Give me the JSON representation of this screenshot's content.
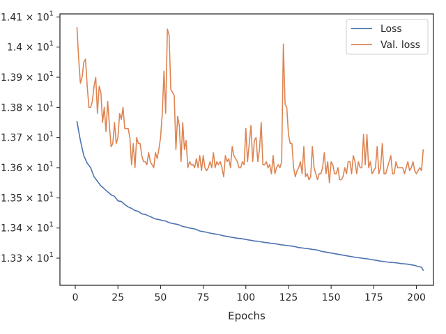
{
  "chart_data": {
    "type": "line",
    "title": "",
    "xlabel": "Epochs",
    "ylabel": "",
    "xlim": [
      -9,
      210
    ],
    "ylim": [
      13.21,
      14.11
    ],
    "x_ticks": [
      0,
      25,
      50,
      75,
      100,
      125,
      150,
      175,
      200
    ],
    "x_tick_labels": [
      "0",
      "25",
      "50",
      "75",
      "100",
      "125",
      "150",
      "175",
      "200"
    ],
    "y_ticks": [
      13.3,
      13.4,
      13.5,
      13.6,
      13.7,
      13.8,
      13.9,
      14.0,
      14.1
    ],
    "y_tick_labels": [
      {
        "mantissa": "1.33",
        "exp": "1"
      },
      {
        "mantissa": "1.34",
        "exp": "1"
      },
      {
        "mantissa": "1.35",
        "exp": "1"
      },
      {
        "mantissa": "1.36",
        "exp": "1"
      },
      {
        "mantissa": "1.37",
        "exp": "1"
      },
      {
        "mantissa": "1.38",
        "exp": "1"
      },
      {
        "mantissa": "1.39",
        "exp": "1"
      },
      {
        "mantissa": "1.4",
        "exp": "1"
      },
      {
        "mantissa": "1.41",
        "exp": "1"
      }
    ],
    "grid": false,
    "legend_position": "top-right",
    "series": [
      {
        "name": "Loss",
        "color": "#4c72b0",
        "points": [
          [
            1,
            13.753
          ],
          [
            3,
            13.69
          ],
          [
            5,
            13.64
          ],
          [
            7,
            13.615
          ],
          [
            9,
            13.6
          ],
          [
            11,
            13.57
          ],
          [
            13,
            13.555
          ],
          [
            15,
            13.54
          ],
          [
            17,
            13.53
          ],
          [
            19,
            13.52
          ],
          [
            21,
            13.51
          ],
          [
            23,
            13.505
          ],
          [
            25,
            13.49
          ],
          [
            27,
            13.488
          ],
          [
            29,
            13.478
          ],
          [
            31,
            13.47
          ],
          [
            33,
            13.465
          ],
          [
            35,
            13.458
          ],
          [
            37,
            13.455
          ],
          [
            39,
            13.447
          ],
          [
            41,
            13.445
          ],
          [
            43,
            13.44
          ],
          [
            45,
            13.435
          ],
          [
            47,
            13.43
          ],
          [
            49,
            13.428
          ],
          [
            51,
            13.425
          ],
          [
            53,
            13.423
          ],
          [
            55,
            13.418
          ],
          [
            57,
            13.415
          ],
          [
            59,
            13.413
          ],
          [
            61,
            13.41
          ],
          [
            63,
            13.405
          ],
          [
            65,
            13.403
          ],
          [
            67,
            13.4
          ],
          [
            69,
            13.398
          ],
          [
            71,
            13.395
          ],
          [
            73,
            13.39
          ],
          [
            75,
            13.388
          ],
          [
            77,
            13.386
          ],
          [
            79,
            13.383
          ],
          [
            81,
            13.381
          ],
          [
            83,
            13.379
          ],
          [
            85,
            13.377
          ],
          [
            87,
            13.374
          ],
          [
            89,
            13.372
          ],
          [
            91,
            13.37
          ],
          [
            93,
            13.368
          ],
          [
            95,
            13.366
          ],
          [
            97,
            13.365
          ],
          [
            99,
            13.363
          ],
          [
            101,
            13.361
          ],
          [
            103,
            13.359
          ],
          [
            105,
            13.357
          ],
          [
            107,
            13.356
          ],
          [
            109,
            13.354
          ],
          [
            111,
            13.352
          ],
          [
            113,
            13.351
          ],
          [
            115,
            13.349
          ],
          [
            117,
            13.348
          ],
          [
            119,
            13.346
          ],
          [
            121,
            13.344
          ],
          [
            123,
            13.343
          ],
          [
            125,
            13.341
          ],
          [
            127,
            13.34
          ],
          [
            129,
            13.338
          ],
          [
            131,
            13.335
          ],
          [
            133,
            13.334
          ],
          [
            135,
            13.332
          ],
          [
            137,
            13.331
          ],
          [
            139,
            13.329
          ],
          [
            141,
            13.328
          ],
          [
            143,
            13.325
          ],
          [
            145,
            13.322
          ],
          [
            147,
            13.32
          ],
          [
            149,
            13.318
          ],
          [
            151,
            13.316
          ],
          [
            153,
            13.314
          ],
          [
            155,
            13.312
          ],
          [
            157,
            13.31
          ],
          [
            159,
            13.308
          ],
          [
            161,
            13.306
          ],
          [
            163,
            13.304
          ],
          [
            165,
            13.302
          ],
          [
            167,
            13.301
          ],
          [
            169,
            13.299
          ],
          [
            171,
            13.298
          ],
          [
            173,
            13.296
          ],
          [
            175,
            13.294
          ],
          [
            177,
            13.292
          ],
          [
            179,
            13.29
          ],
          [
            181,
            13.289
          ],
          [
            183,
            13.287
          ],
          [
            185,
            13.286
          ],
          [
            187,
            13.285
          ],
          [
            189,
            13.284
          ],
          [
            191,
            13.282
          ],
          [
            193,
            13.281
          ],
          [
            195,
            13.28
          ],
          [
            197,
            13.278
          ],
          [
            199,
            13.276
          ],
          [
            201,
            13.272
          ],
          [
            203,
            13.27
          ],
          [
            204,
            13.26
          ]
        ]
      },
      {
        "name": "Val. loss",
        "color": "#dd8452",
        "points": [
          [
            1,
            14.065
          ],
          [
            2,
            13.96
          ],
          [
            3,
            13.88
          ],
          [
            4,
            13.9
          ],
          [
            5,
            13.95
          ],
          [
            6,
            13.96
          ],
          [
            7,
            13.87
          ],
          [
            8,
            13.8
          ],
          [
            9,
            13.8
          ],
          [
            10,
            13.82
          ],
          [
            11,
            13.87
          ],
          [
            12,
            13.9
          ],
          [
            13,
            13.78
          ],
          [
            14,
            13.87
          ],
          [
            15,
            13.85
          ],
          [
            16,
            13.75
          ],
          [
            17,
            13.8
          ],
          [
            18,
            13.72
          ],
          [
            19,
            13.82
          ],
          [
            20,
            13.74
          ],
          [
            21,
            13.67
          ],
          [
            22,
            13.68
          ],
          [
            23,
            13.75
          ],
          [
            24,
            13.68
          ],
          [
            25,
            13.7
          ],
          [
            26,
            13.78
          ],
          [
            27,
            13.76
          ],
          [
            28,
            13.8
          ],
          [
            29,
            13.73
          ],
          [
            30,
            13.73
          ],
          [
            31,
            13.73
          ],
          [
            32,
            13.7
          ],
          [
            33,
            13.61
          ],
          [
            34,
            13.68
          ],
          [
            35,
            13.6
          ],
          [
            36,
            13.7
          ],
          [
            37,
            13.68
          ],
          [
            38,
            13.68
          ],
          [
            39,
            13.64
          ],
          [
            40,
            13.62
          ],
          [
            41,
            13.62
          ],
          [
            42,
            13.61
          ],
          [
            43,
            13.65
          ],
          [
            44,
            13.62
          ],
          [
            45,
            13.61
          ],
          [
            46,
            13.6
          ],
          [
            47,
            13.65
          ],
          [
            48,
            13.63
          ],
          [
            49,
            13.66
          ],
          [
            50,
            13.7
          ],
          [
            51,
            13.78
          ],
          [
            52,
            13.92
          ],
          [
            53,
            13.78
          ],
          [
            54,
            14.06
          ],
          [
            55,
            14.04
          ],
          [
            56,
            13.86
          ],
          [
            57,
            13.85
          ],
          [
            58,
            13.84
          ],
          [
            59,
            13.66
          ],
          [
            60,
            13.77
          ],
          [
            61,
            13.74
          ],
          [
            62,
            13.62
          ],
          [
            63,
            13.75
          ],
          [
            64,
            13.66
          ],
          [
            65,
            13.69
          ],
          [
            66,
            13.6
          ],
          [
            67,
            13.62
          ],
          [
            68,
            13.61
          ],
          [
            69,
            13.61
          ],
          [
            70,
            13.6
          ],
          [
            71,
            13.63
          ],
          [
            72,
            13.6
          ],
          [
            73,
            13.64
          ],
          [
            74,
            13.59
          ],
          [
            75,
            13.64
          ],
          [
            76,
            13.6
          ],
          [
            77,
            13.59
          ],
          [
            78,
            13.6
          ],
          [
            79,
            13.62
          ],
          [
            80,
            13.6
          ],
          [
            81,
            13.65
          ],
          [
            82,
            13.6
          ],
          [
            83,
            13.62
          ],
          [
            84,
            13.61
          ],
          [
            85,
            13.62
          ],
          [
            86,
            13.6
          ],
          [
            87,
            13.57
          ],
          [
            88,
            13.64
          ],
          [
            89,
            13.62
          ],
          [
            90,
            13.63
          ],
          [
            91,
            13.6
          ],
          [
            92,
            13.67
          ],
          [
            93,
            13.64
          ],
          [
            94,
            13.63
          ],
          [
            95,
            13.62
          ],
          [
            96,
            13.6
          ],
          [
            97,
            13.6
          ],
          [
            98,
            13.62
          ],
          [
            99,
            13.61
          ],
          [
            100,
            13.73
          ],
          [
            101,
            13.62
          ],
          [
            102,
            13.68
          ],
          [
            103,
            13.74
          ],
          [
            104,
            13.62
          ],
          [
            105,
            13.69
          ],
          [
            106,
            13.7
          ],
          [
            107,
            13.62
          ],
          [
            108,
            13.66
          ],
          [
            109,
            13.75
          ],
          [
            110,
            13.61
          ],
          [
            111,
            13.61
          ],
          [
            112,
            13.62
          ],
          [
            113,
            13.6
          ],
          [
            114,
            13.61
          ],
          [
            115,
            13.58
          ],
          [
            116,
            13.64
          ],
          [
            117,
            13.58
          ],
          [
            118,
            13.6
          ],
          [
            119,
            13.61
          ],
          [
            120,
            13.6
          ],
          [
            121,
            13.62
          ],
          [
            122,
            14.01
          ],
          [
            123,
            13.81
          ],
          [
            124,
            13.8
          ],
          [
            125,
            13.71
          ],
          [
            126,
            13.68
          ],
          [
            127,
            13.68
          ],
          [
            128,
            13.6
          ],
          [
            129,
            13.57
          ],
          [
            130,
            13.59
          ],
          [
            131,
            13.6
          ],
          [
            132,
            13.62
          ],
          [
            133,
            13.58
          ],
          [
            134,
            13.67
          ],
          [
            135,
            13.57
          ],
          [
            136,
            13.58
          ],
          [
            137,
            13.56
          ],
          [
            138,
            13.57
          ],
          [
            139,
            13.67
          ],
          [
            140,
            13.6
          ],
          [
            141,
            13.58
          ],
          [
            142,
            13.56
          ],
          [
            143,
            13.58
          ],
          [
            144,
            13.58
          ],
          [
            145,
            13.6
          ],
          [
            146,
            13.65
          ],
          [
            147,
            13.58
          ],
          [
            148,
            13.62
          ],
          [
            149,
            13.55
          ],
          [
            150,
            13.62
          ],
          [
            151,
            13.61
          ],
          [
            152,
            13.58
          ],
          [
            153,
            13.58
          ],
          [
            154,
            13.6
          ],
          [
            155,
            13.56
          ],
          [
            156,
            13.56
          ],
          [
            157,
            13.57
          ],
          [
            158,
            13.6
          ],
          [
            159,
            13.58
          ],
          [
            160,
            13.62
          ],
          [
            161,
            13.62
          ],
          [
            162,
            13.58
          ],
          [
            163,
            13.64
          ],
          [
            164,
            13.62
          ],
          [
            165,
            13.58
          ],
          [
            166,
            13.62
          ],
          [
            167,
            13.6
          ],
          [
            168,
            13.6
          ],
          [
            169,
            13.71
          ],
          [
            170,
            13.61
          ],
          [
            171,
            13.71
          ],
          [
            172,
            13.6
          ],
          [
            173,
            13.62
          ],
          [
            174,
            13.58
          ],
          [
            175,
            13.59
          ],
          [
            176,
            13.6
          ],
          [
            177,
            13.67
          ],
          [
            178,
            13.58
          ],
          [
            179,
            13.6
          ],
          [
            180,
            13.68
          ],
          [
            181,
            13.58
          ],
          [
            182,
            13.58
          ],
          [
            183,
            13.6
          ],
          [
            184,
            13.62
          ],
          [
            185,
            13.64
          ],
          [
            186,
            13.58
          ],
          [
            187,
            13.58
          ],
          [
            188,
            13.62
          ],
          [
            189,
            13.6
          ],
          [
            190,
            13.6
          ],
          [
            191,
            13.6
          ],
          [
            192,
            13.6
          ],
          [
            193,
            13.58
          ],
          [
            194,
            13.6
          ],
          [
            195,
            13.62
          ],
          [
            196,
            13.59
          ],
          [
            197,
            13.6
          ],
          [
            198,
            13.62
          ],
          [
            199,
            13.59
          ],
          [
            200,
            13.58
          ],
          [
            201,
            13.59
          ],
          [
            202,
            13.6
          ],
          [
            203,
            13.59
          ],
          [
            204,
            13.66
          ]
        ]
      }
    ]
  }
}
